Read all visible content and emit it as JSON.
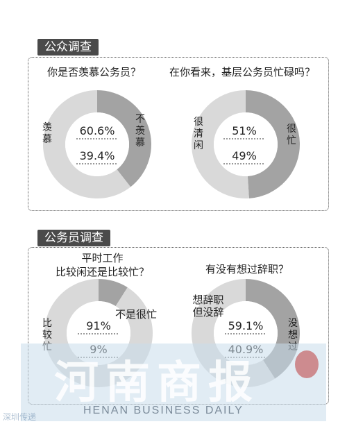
{
  "sections": [
    {
      "title": "公众调查"
    },
    {
      "title": "公务员调查"
    }
  ],
  "colors": {
    "dark": "#a3a3a3",
    "light": "#d9d9d9"
  },
  "chart_data": [
    {
      "type": "pie",
      "title": "你是否羡慕公务员？",
      "slices": [
        {
          "label": "不羡慕",
          "value": 39.4,
          "percent_text": "39.4%"
        },
        {
          "label": "羡慕",
          "value": 60.6,
          "percent_text": "60.6%"
        }
      ]
    },
    {
      "type": "pie",
      "title": "在你看来，基层公务员忙碌吗？",
      "slices": [
        {
          "label": "很忙",
          "value": 49,
          "percent_text": "49%"
        },
        {
          "label": "很清闲",
          "value": 51,
          "percent_text": "51%"
        }
      ]
    },
    {
      "type": "pie",
      "title": "平时工作\n比较闲还是比较忙？",
      "slices": [
        {
          "label": "不是很忙",
          "value": 9,
          "percent_text": "9%"
        },
        {
          "label": "比较忙",
          "value": 91,
          "percent_text": "91%"
        }
      ]
    },
    {
      "type": "pie",
      "title": "有没有想过辞职？",
      "slices": [
        {
          "label": "没想过",
          "value": 40.9,
          "percent_text": "40.9%"
        },
        {
          "label": "想辞职但没辞",
          "value": 59.1,
          "percent_text": "59.1%"
        }
      ]
    }
  ],
  "watermark": {
    "brand_cn": "河南商报",
    "brand_en": "HENAN BUSINESS DAILY",
    "corner_text": "深圳传递"
  }
}
